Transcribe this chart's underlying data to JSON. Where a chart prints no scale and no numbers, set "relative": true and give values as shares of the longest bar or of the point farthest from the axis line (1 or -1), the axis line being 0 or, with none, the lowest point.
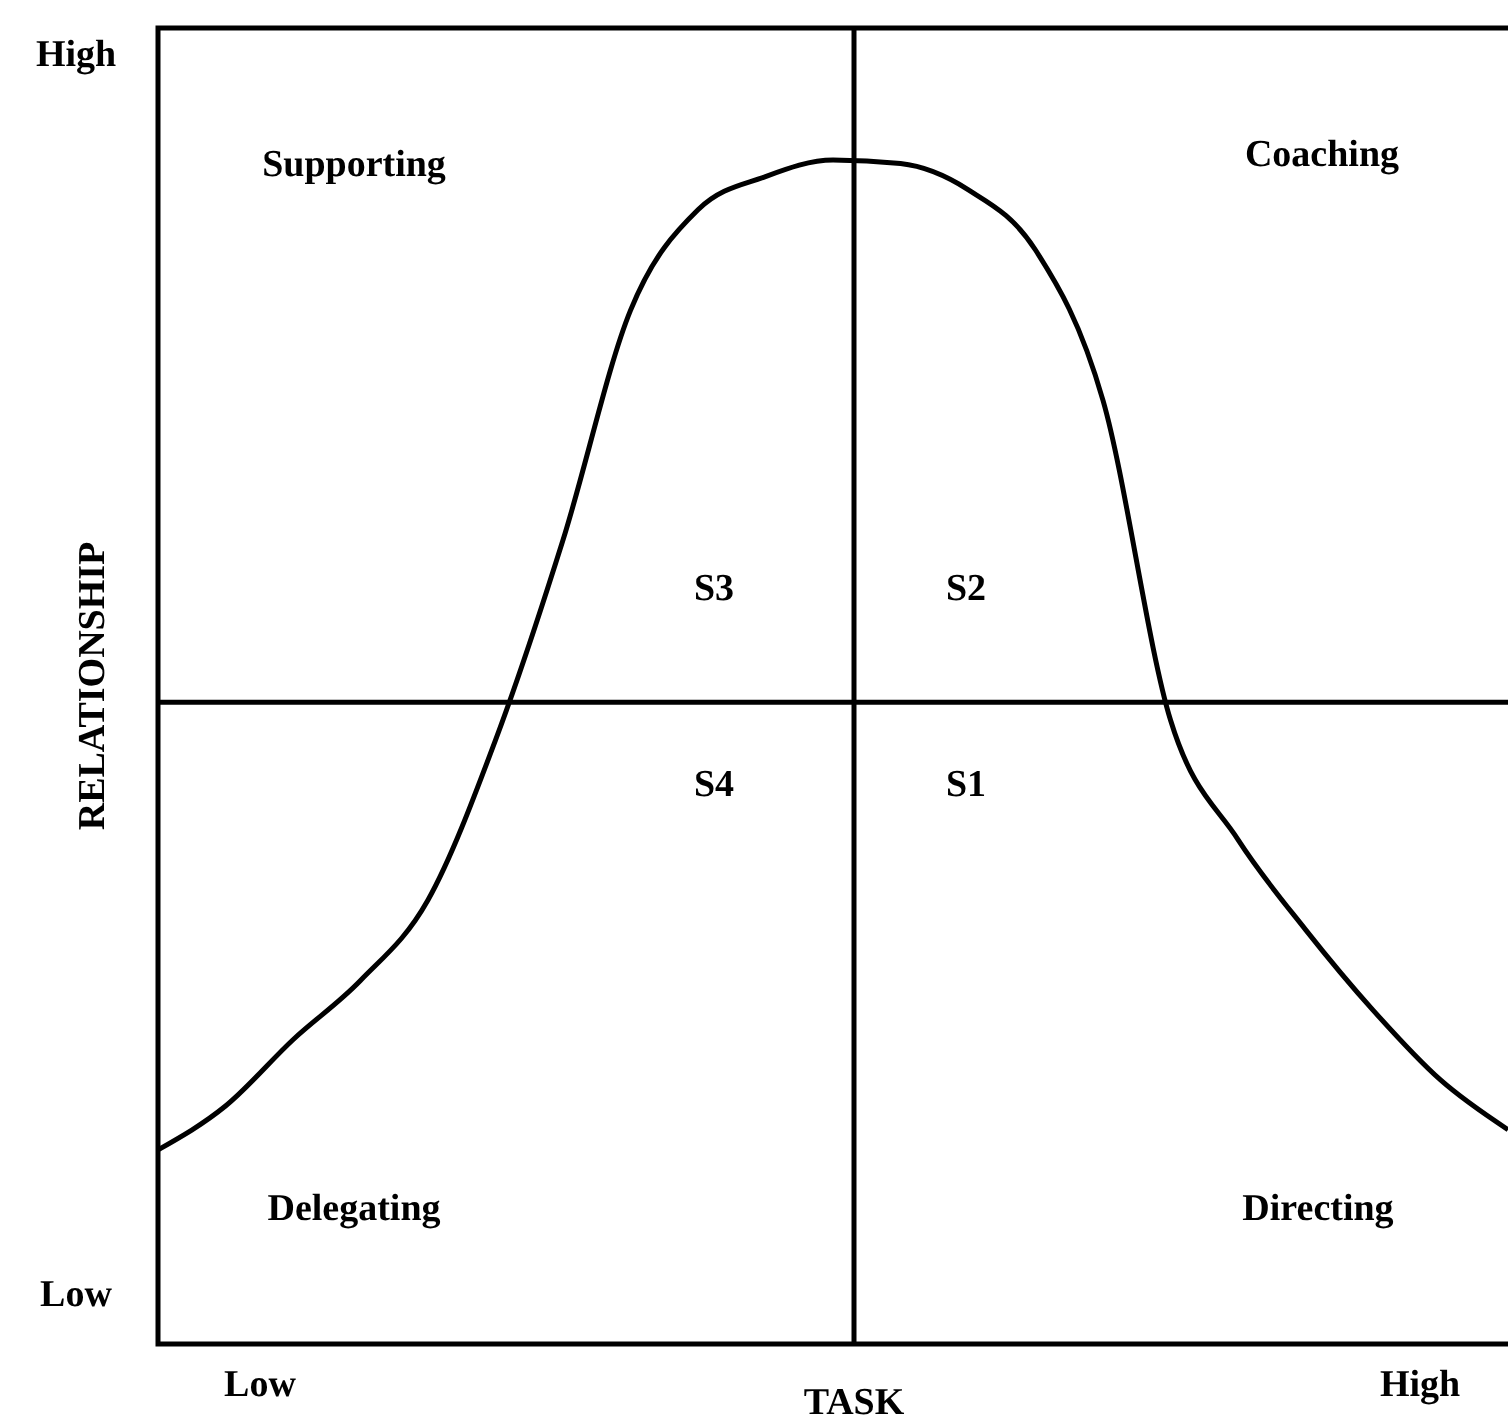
{
  "chart_data": {
    "type": "line",
    "relative": true,
    "xlabel": "TASK",
    "ylabel": "RELATIONSHIP",
    "categories": [
      null,
      null,
      null,
      null,
      null,
      null,
      null,
      null,
      null,
      null,
      null,
      null,
      null,
      null,
      null,
      null,
      null,
      null,
      null,
      null,
      null
    ],
    "series": [
      {
        "color": "#000000",
        "values": [
          0.164,
          0.201,
          0.257,
          0.307,
          0.375,
          0.51,
          0.679,
          0.873,
          0.958,
          0.986,
          1,
          0.997,
          0.975,
          0.924,
          0.797,
          0.527,
          0.426,
          0.35,
          0.282,
          0.223,
          0.181
        ]
      }
    ],
    "ref_lines": [
      {
        "axis": "x"
      },
      {
        "axis": "y",
        "value": 0.542
      }
    ],
    "marker": "none",
    "line_style": "solid",
    "grid": false,
    "annotations": [
      "High",
      "Low",
      "Low",
      "High",
      "Supporting",
      "Coaching",
      "S3",
      "S2",
      "S4",
      "S1",
      "Delegating",
      "Directing"
    ]
  }
}
